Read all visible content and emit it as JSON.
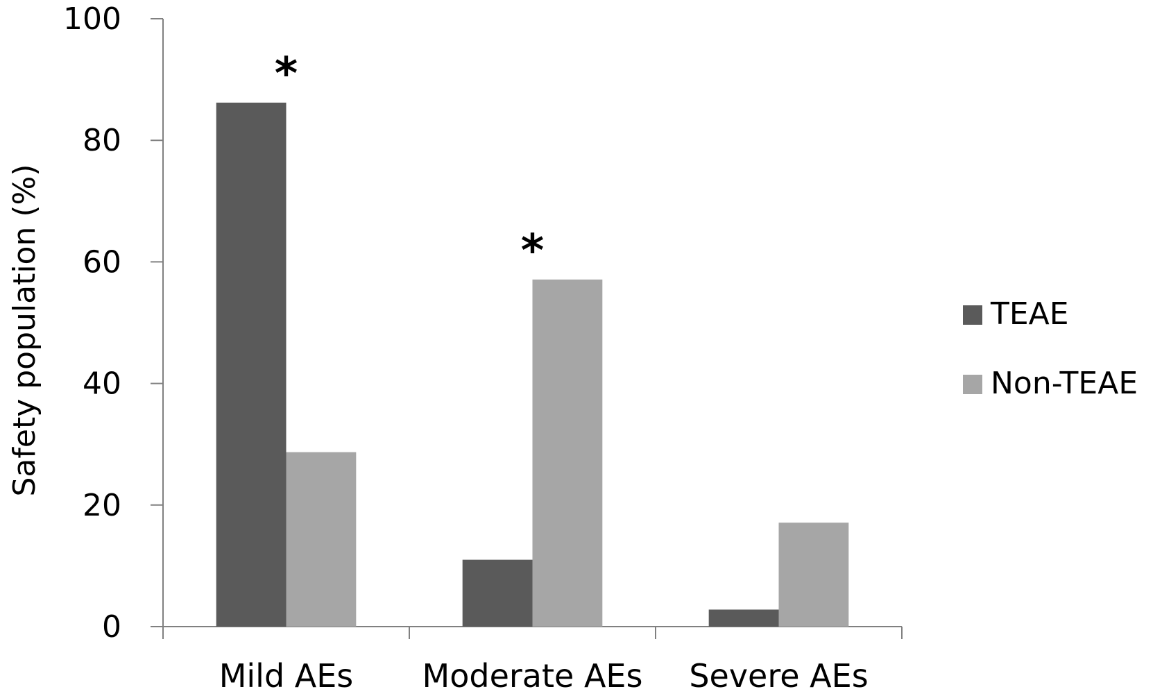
{
  "chart_data": {
    "type": "bar",
    "categories": [
      "Mild AEs",
      "Moderate AEs",
      "Severe AEs"
    ],
    "series": [
      {
        "name": "TEAE",
        "values": [
          86.2,
          11.0,
          2.8
        ],
        "color": "#5a5a5a"
      },
      {
        "name": "Non-TEAE",
        "values": [
          28.7,
          57.1,
          17.1
        ],
        "color": "#a6a6a6"
      }
    ],
    "title": "",
    "xlabel": "",
    "ylabel": "Safety population (%)",
    "ylim": [
      0,
      100
    ],
    "yticks": [
      "0",
      "20",
      "40",
      "60",
      "80",
      "100"
    ],
    "grid": false,
    "legend_position": "right",
    "annotations": [
      {
        "text": "*",
        "category": "Mild AEs"
      },
      {
        "text": "*",
        "category": "Moderate AEs"
      }
    ]
  }
}
